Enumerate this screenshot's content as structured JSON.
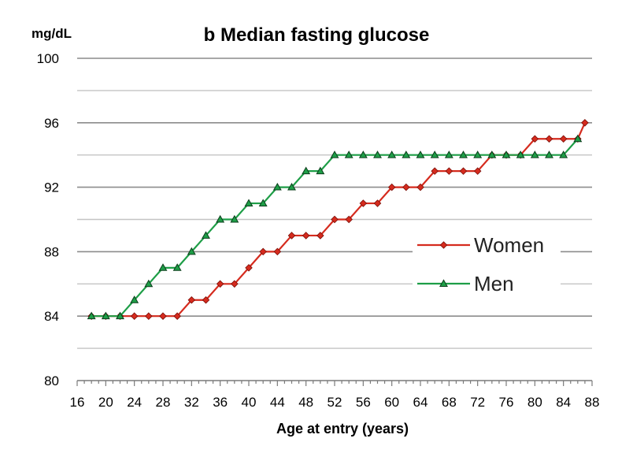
{
  "chart_data": {
    "type": "line",
    "title": "b Median fasting glucose",
    "ylabel": "mg/dL",
    "xlabel": "Age at entry (years)",
    "xlim": [
      16,
      88
    ],
    "ylim": [
      80,
      100
    ],
    "xticks": [
      16,
      20,
      24,
      28,
      32,
      36,
      40,
      44,
      48,
      52,
      56,
      60,
      64,
      68,
      72,
      76,
      80,
      84,
      88
    ],
    "yticks_labeled": [
      80,
      84,
      88,
      92,
      96,
      100
    ],
    "grid_minor_y": [
      82,
      86,
      90,
      94,
      98
    ],
    "legend_position": "right",
    "colors": {
      "women": "#d52b1e",
      "men": "#1e9e47",
      "grid_major": "#8c8c8c",
      "grid_minor": "#c4c4c4"
    },
    "series": [
      {
        "name": "Women",
        "marker": "diamond",
        "x": [
          18,
          20,
          22,
          24,
          26,
          28,
          30,
          32,
          34,
          36,
          38,
          40,
          42,
          44,
          46,
          48,
          50,
          52,
          54,
          56,
          58,
          60,
          62,
          64,
          66,
          68,
          70,
          72,
          74,
          76,
          78,
          80,
          82,
          84,
          86
        ],
        "y": [
          84,
          84,
          84,
          84,
          84,
          84,
          84,
          85,
          85,
          86,
          86,
          87,
          88,
          88,
          89,
          89,
          89,
          90,
          90,
          91,
          91,
          92,
          92,
          92,
          93,
          93,
          93,
          93,
          94,
          94,
          94,
          95,
          95,
          95,
          95
        ]
      },
      {
        "name": "Men",
        "marker": "triangle",
        "x": [
          18,
          20,
          22,
          24,
          26,
          28,
          30,
          32,
          34,
          36,
          38,
          40,
          42,
          44,
          46,
          48,
          50,
          52,
          54,
          56,
          58,
          60,
          62,
          64,
          66,
          68,
          70,
          72,
          74,
          76,
          78,
          80,
          82,
          84,
          86
        ],
        "y": [
          84,
          84,
          84,
          85,
          86,
          87,
          87,
          88,
          89,
          90,
          90,
          91,
          91,
          92,
          92,
          93,
          93,
          94,
          94,
          94,
          94,
          94,
          94,
          94,
          94,
          94,
          94,
          94,
          94,
          94,
          94,
          94,
          94,
          94,
          95
        ]
      }
    ],
    "women_last_point": [
      87,
      96
    ]
  }
}
